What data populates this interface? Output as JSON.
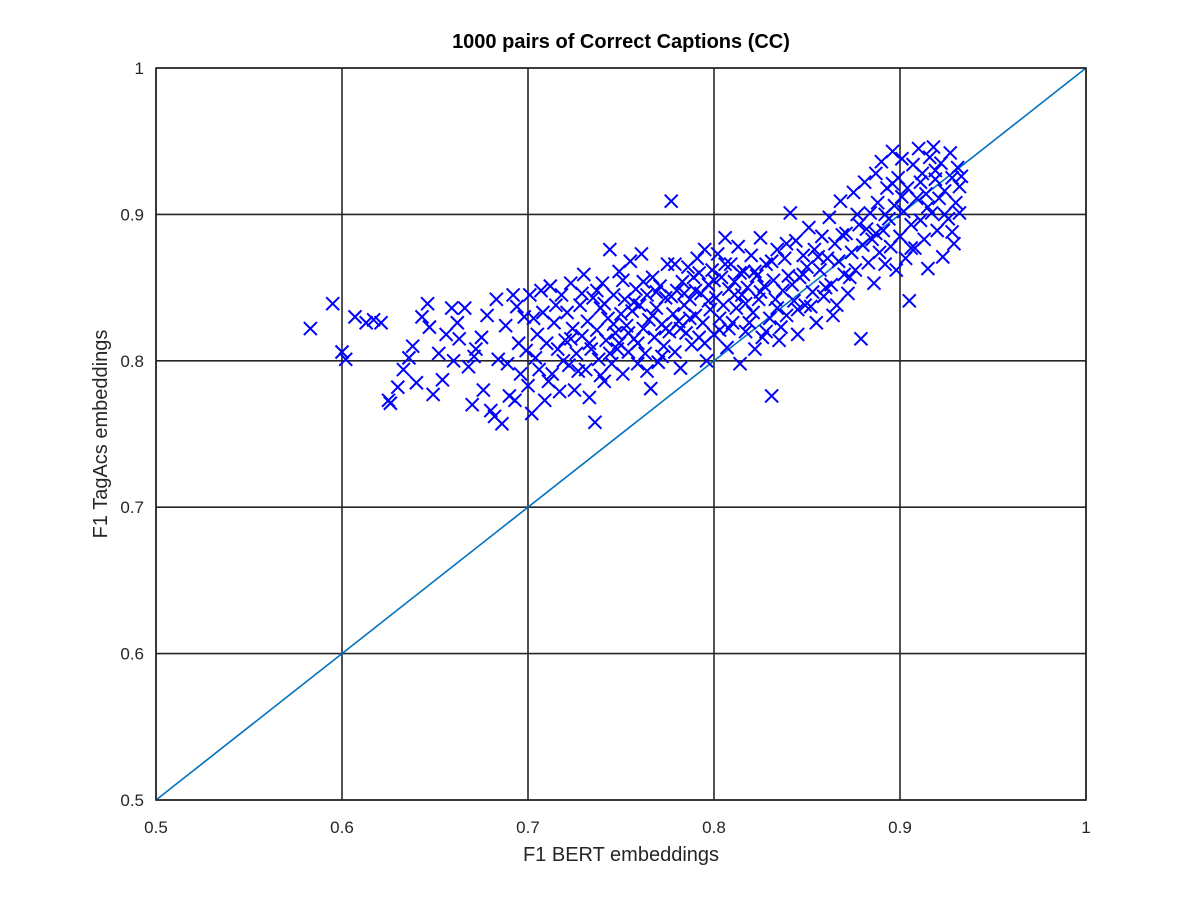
{
  "chart_data": {
    "type": "scatter",
    "title": "1000 pairs of Correct Captions (CC)",
    "xlabel": "F1 BERT embeddings",
    "ylabel": "F1 TagAcs  embeddings",
    "xlim": [
      0.5,
      1
    ],
    "ylim": [
      0.5,
      1
    ],
    "xticks": [
      "0.5",
      "0.6",
      "0.7",
      "0.8",
      "0.9",
      "1"
    ],
    "yticks": [
      "0.5",
      "0.6",
      "0.7",
      "0.8",
      "0.9",
      "1"
    ],
    "grid": true,
    "legend": "none",
    "marker": "x",
    "colors": {
      "points": "#0000ff",
      "reference_line": "#0072bd",
      "axes": "#262626"
    },
    "reference_line": {
      "x": [
        0.5,
        1
      ],
      "y": [
        0.5,
        1
      ]
    },
    "points": [
      [
        0.583,
        0.822
      ],
      [
        0.595,
        0.839
      ],
      [
        0.6,
        0.806
      ],
      [
        0.602,
        0.801
      ],
      [
        0.613,
        0.826
      ],
      [
        0.617,
        0.828
      ],
      [
        0.621,
        0.826
      ],
      [
        0.625,
        0.773
      ],
      [
        0.626,
        0.771
      ],
      [
        0.63,
        0.782
      ],
      [
        0.633,
        0.794
      ],
      [
        0.636,
        0.802
      ],
      [
        0.64,
        0.785
      ],
      [
        0.643,
        0.83
      ],
      [
        0.646,
        0.839
      ],
      [
        0.647,
        0.823
      ],
      [
        0.649,
        0.777
      ],
      [
        0.652,
        0.805
      ],
      [
        0.656,
        0.818
      ],
      [
        0.659,
        0.836
      ],
      [
        0.66,
        0.8
      ],
      [
        0.663,
        0.815
      ],
      [
        0.666,
        0.836
      ],
      [
        0.668,
        0.796
      ],
      [
        0.67,
        0.77
      ],
      [
        0.672,
        0.808
      ],
      [
        0.675,
        0.816
      ],
      [
        0.676,
        0.78
      ],
      [
        0.678,
        0.831
      ],
      [
        0.68,
        0.766
      ],
      [
        0.682,
        0.762
      ],
      [
        0.684,
        0.801
      ],
      [
        0.686,
        0.757
      ],
      [
        0.688,
        0.824
      ],
      [
        0.69,
        0.776
      ],
      [
        0.692,
        0.845
      ],
      [
        0.693,
        0.773
      ],
      [
        0.695,
        0.812
      ],
      [
        0.696,
        0.791
      ],
      [
        0.698,
        0.83
      ],
      [
        0.7,
        0.783
      ],
      [
        0.701,
        0.845
      ],
      [
        0.702,
        0.764
      ],
      [
        0.704,
        0.802
      ],
      [
        0.705,
        0.818
      ],
      [
        0.706,
        0.794
      ],
      [
        0.708,
        0.833
      ],
      [
        0.709,
        0.773
      ],
      [
        0.71,
        0.812
      ],
      [
        0.712,
        0.851
      ],
      [
        0.713,
        0.791
      ],
      [
        0.714,
        0.826
      ],
      [
        0.716,
        0.808
      ],
      [
        0.717,
        0.779
      ],
      [
        0.718,
        0.845
      ],
      [
        0.72,
        0.814
      ],
      [
        0.721,
        0.833
      ],
      [
        0.722,
        0.797
      ],
      [
        0.723,
        0.853
      ],
      [
        0.724,
        0.822
      ],
      [
        0.725,
        0.78
      ],
      [
        0.726,
        0.805
      ],
      [
        0.728,
        0.838
      ],
      [
        0.729,
        0.817
      ],
      [
        0.73,
        0.859
      ],
      [
        0.731,
        0.794
      ],
      [
        0.732,
        0.827
      ],
      [
        0.733,
        0.775
      ],
      [
        0.734,
        0.808
      ],
      [
        0.735,
        0.843
      ],
      [
        0.736,
        0.758
      ],
      [
        0.737,
        0.821
      ],
      [
        0.738,
        0.801
      ],
      [
        0.739,
        0.836
      ],
      [
        0.74,
        0.853
      ],
      [
        0.741,
        0.786
      ],
      [
        0.742,
        0.814
      ],
      [
        0.743,
        0.829
      ],
      [
        0.744,
        0.876
      ],
      [
        0.745,
        0.798
      ],
      [
        0.746,
        0.845
      ],
      [
        0.747,
        0.819
      ],
      [
        0.748,
        0.808
      ],
      [
        0.749,
        0.861
      ],
      [
        0.75,
        0.832
      ],
      [
        0.751,
        0.791
      ],
      [
        0.752,
        0.842
      ],
      [
        0.753,
        0.824
      ],
      [
        0.754,
        0.806
      ],
      [
        0.755,
        0.868
      ],
      [
        0.756,
        0.834
      ],
      [
        0.757,
        0.815
      ],
      [
        0.758,
        0.849
      ],
      [
        0.759,
        0.798
      ],
      [
        0.76,
        0.838
      ],
      [
        0.761,
        0.873
      ],
      [
        0.762,
        0.822
      ],
      [
        0.763,
        0.805
      ],
      [
        0.764,
        0.845
      ],
      [
        0.765,
        0.828
      ],
      [
        0.766,
        0.781
      ],
      [
        0.767,
        0.857
      ],
      [
        0.768,
        0.816
      ],
      [
        0.769,
        0.836
      ],
      [
        0.77,
        0.799
      ],
      [
        0.771,
        0.851
      ],
      [
        0.772,
        0.825
      ],
      [
        0.773,
        0.81
      ],
      [
        0.774,
        0.843
      ],
      [
        0.775,
        0.866
      ],
      [
        0.776,
        0.82
      ],
      [
        0.777,
        0.909
      ],
      [
        0.778,
        0.832
      ],
      [
        0.779,
        0.806
      ],
      [
        0.78,
        0.848
      ],
      [
        0.781,
        0.827
      ],
      [
        0.782,
        0.795
      ],
      [
        0.783,
        0.854
      ],
      [
        0.784,
        0.838
      ],
      [
        0.785,
        0.819
      ],
      [
        0.786,
        0.864
      ],
      [
        0.787,
        0.842
      ],
      [
        0.788,
        0.811
      ],
      [
        0.789,
        0.857
      ],
      [
        0.79,
        0.831
      ],
      [
        0.791,
        0.87
      ],
      [
        0.792,
        0.816
      ],
      [
        0.793,
        0.846
      ],
      [
        0.794,
        0.826
      ],
      [
        0.795,
        0.876
      ],
      [
        0.796,
        0.8
      ],
      [
        0.797,
        0.852
      ],
      [
        0.798,
        0.835
      ],
      [
        0.799,
        0.862
      ],
      [
        0.8,
        0.818
      ],
      [
        0.801,
        0.843
      ],
      [
        0.802,
        0.873
      ],
      [
        0.803,
        0.829
      ],
      [
        0.804,
        0.857
      ],
      [
        0.805,
        0.838
      ],
      [
        0.806,
        0.884
      ],
      [
        0.807,
        0.809
      ],
      [
        0.808,
        0.849
      ],
      [
        0.809,
        0.866
      ],
      [
        0.81,
        0.826
      ],
      [
        0.811,
        0.854
      ],
      [
        0.812,
        0.836
      ],
      [
        0.813,
        0.878
      ],
      [
        0.814,
        0.798
      ],
      [
        0.815,
        0.845
      ],
      [
        0.816,
        0.861
      ],
      [
        0.817,
        0.82
      ],
      [
        0.818,
        0.85
      ],
      [
        0.82,
        0.872
      ],
      [
        0.821,
        0.833
      ],
      [
        0.822,
        0.808
      ],
      [
        0.823,
        0.858
      ],
      [
        0.824,
        0.842
      ],
      [
        0.825,
        0.884
      ],
      [
        0.826,
        0.816
      ],
      [
        0.827,
        0.851
      ],
      [
        0.828,
        0.866
      ],
      [
        0.83,
        0.829
      ],
      [
        0.831,
        0.776
      ],
      [
        0.832,
        0.855
      ],
      [
        0.833,
        0.842
      ],
      [
        0.834,
        0.876
      ],
      [
        0.835,
        0.814
      ],
      [
        0.837,
        0.848
      ],
      [
        0.838,
        0.87
      ],
      [
        0.839,
        0.831
      ],
      [
        0.84,
        0.858
      ],
      [
        0.841,
        0.901
      ],
      [
        0.843,
        0.841
      ],
      [
        0.844,
        0.882
      ],
      [
        0.845,
        0.818
      ],
      [
        0.846,
        0.857
      ],
      [
        0.848,
        0.872
      ],
      [
        0.849,
        0.838
      ],
      [
        0.85,
        0.864
      ],
      [
        0.851,
        0.891
      ],
      [
        0.853,
        0.847
      ],
      [
        0.854,
        0.876
      ],
      [
        0.855,
        0.826
      ],
      [
        0.857,
        0.862
      ],
      [
        0.858,
        0.885
      ],
      [
        0.859,
        0.844
      ],
      [
        0.861,
        0.87
      ],
      [
        0.862,
        0.898
      ],
      [
        0.863,
        0.852
      ],
      [
        0.865,
        0.88
      ],
      [
        0.866,
        0.838
      ],
      [
        0.867,
        0.868
      ],
      [
        0.868,
        0.909
      ],
      [
        0.87,
        0.859
      ],
      [
        0.871,
        0.887
      ],
      [
        0.872,
        0.846
      ],
      [
        0.874,
        0.874
      ],
      [
        0.875,
        0.915
      ],
      [
        0.876,
        0.862
      ],
      [
        0.878,
        0.893
      ],
      [
        0.879,
        0.815
      ],
      [
        0.88,
        0.879
      ],
      [
        0.881,
        0.922
      ],
      [
        0.883,
        0.867
      ],
      [
        0.884,
        0.901
      ],
      [
        0.885,
        0.883
      ],
      [
        0.886,
        0.853
      ],
      [
        0.887,
        0.928
      ],
      [
        0.888,
        0.908
      ],
      [
        0.889,
        0.874
      ],
      [
        0.89,
        0.936
      ],
      [
        0.891,
        0.889
      ],
      [
        0.892,
        0.866
      ],
      [
        0.893,
        0.918
      ],
      [
        0.894,
        0.897
      ],
      [
        0.895,
        0.878
      ],
      [
        0.896,
        0.943
      ],
      [
        0.897,
        0.906
      ],
      [
        0.898,
        0.862
      ],
      [
        0.899,
        0.925
      ],
      [
        0.9,
        0.885
      ],
      [
        0.901,
        0.938
      ],
      [
        0.902,
        0.902
      ],
      [
        0.903,
        0.87
      ],
      [
        0.904,
        0.918
      ],
      [
        0.905,
        0.841
      ],
      [
        0.906,
        0.893
      ],
      [
        0.907,
        0.934
      ],
      [
        0.908,
        0.877
      ],
      [
        0.909,
        0.911
      ],
      [
        0.91,
        0.945
      ],
      [
        0.911,
        0.896
      ],
      [
        0.912,
        0.928
      ],
      [
        0.913,
        0.883
      ],
      [
        0.914,
        0.914
      ],
      [
        0.915,
        0.863
      ],
      [
        0.916,
        0.939
      ],
      [
        0.917,
        0.901
      ],
      [
        0.918,
        0.946
      ],
      [
        0.919,
        0.924
      ],
      [
        0.92,
        0.889
      ],
      [
        0.921,
        0.911
      ],
      [
        0.922,
        0.935
      ],
      [
        0.923,
        0.871
      ],
      [
        0.924,
        0.916
      ],
      [
        0.926,
        0.897
      ],
      [
        0.927,
        0.942
      ],
      [
        0.928,
        0.925
      ],
      [
        0.929,
        0.88
      ],
      [
        0.93,
        0.908
      ],
      [
        0.931,
        0.932
      ],
      [
        0.932,
        0.919
      ],
      [
        0.933,
        0.926
      ],
      [
        0.607,
        0.83
      ],
      [
        0.638,
        0.81
      ],
      [
        0.654,
        0.787
      ],
      [
        0.662,
        0.826
      ],
      [
        0.671,
        0.803
      ],
      [
        0.683,
        0.842
      ],
      [
        0.689,
        0.798
      ],
      [
        0.694,
        0.837
      ],
      [
        0.699,
        0.807
      ],
      [
        0.703,
        0.829
      ],
      [
        0.707,
        0.848
      ],
      [
        0.711,
        0.786
      ],
      [
        0.715,
        0.838
      ],
      [
        0.719,
        0.8
      ],
      [
        0.723,
        0.815
      ],
      [
        0.727,
        0.793
      ],
      [
        0.729,
        0.846
      ],
      [
        0.733,
        0.812
      ],
      [
        0.737,
        0.848
      ],
      [
        0.739,
        0.79
      ],
      [
        0.741,
        0.839
      ],
      [
        0.744,
        0.805
      ],
      [
        0.746,
        0.825
      ],
      [
        0.749,
        0.812
      ],
      [
        0.751,
        0.855
      ],
      [
        0.754,
        0.819
      ],
      [
        0.757,
        0.84
      ],
      [
        0.759,
        0.812
      ],
      [
        0.762,
        0.854
      ],
      [
        0.764,
        0.793
      ],
      [
        0.767,
        0.831
      ],
      [
        0.769,
        0.847
      ],
      [
        0.772,
        0.803
      ],
      [
        0.774,
        0.822
      ],
      [
        0.777,
        0.844
      ],
      [
        0.779,
        0.866
      ],
      [
        0.782,
        0.822
      ],
      [
        0.784,
        0.846
      ],
      [
        0.787,
        0.829
      ],
      [
        0.79,
        0.848
      ],
      [
        0.792,
        0.86
      ],
      [
        0.795,
        0.812
      ],
      [
        0.797,
        0.841
      ],
      [
        0.8,
        0.855
      ],
      [
        0.803,
        0.821
      ],
      [
        0.806,
        0.866
      ],
      [
        0.808,
        0.822
      ],
      [
        0.811,
        0.845
      ],
      [
        0.814,
        0.86
      ],
      [
        0.817,
        0.839
      ],
      [
        0.819,
        0.826
      ],
      [
        0.822,
        0.861
      ],
      [
        0.825,
        0.847
      ],
      [
        0.828,
        0.82
      ],
      [
        0.831,
        0.868
      ],
      [
        0.834,
        0.836
      ],
      [
        0.836,
        0.823
      ],
      [
        0.839,
        0.88
      ],
      [
        0.842,
        0.852
      ],
      [
        0.845,
        0.835
      ],
      [
        0.848,
        0.859
      ],
      [
        0.852,
        0.837
      ],
      [
        0.856,
        0.871
      ],
      [
        0.86,
        0.85
      ],
      [
        0.864,
        0.831
      ],
      [
        0.869,
        0.886
      ],
      [
        0.873,
        0.857
      ],
      [
        0.877,
        0.9
      ],
      [
        0.882,
        0.89
      ],
      [
        0.887,
        0.887
      ],
      [
        0.892,
        0.9
      ],
      [
        0.896,
        0.921
      ],
      [
        0.901,
        0.912
      ],
      [
        0.906,
        0.877
      ],
      [
        0.911,
        0.922
      ],
      [
        0.915,
        0.905
      ],
      [
        0.919,
        0.93
      ],
      [
        0.924,
        0.9
      ],
      [
        0.928,
        0.888
      ],
      [
        0.932,
        0.901
      ]
    ]
  }
}
